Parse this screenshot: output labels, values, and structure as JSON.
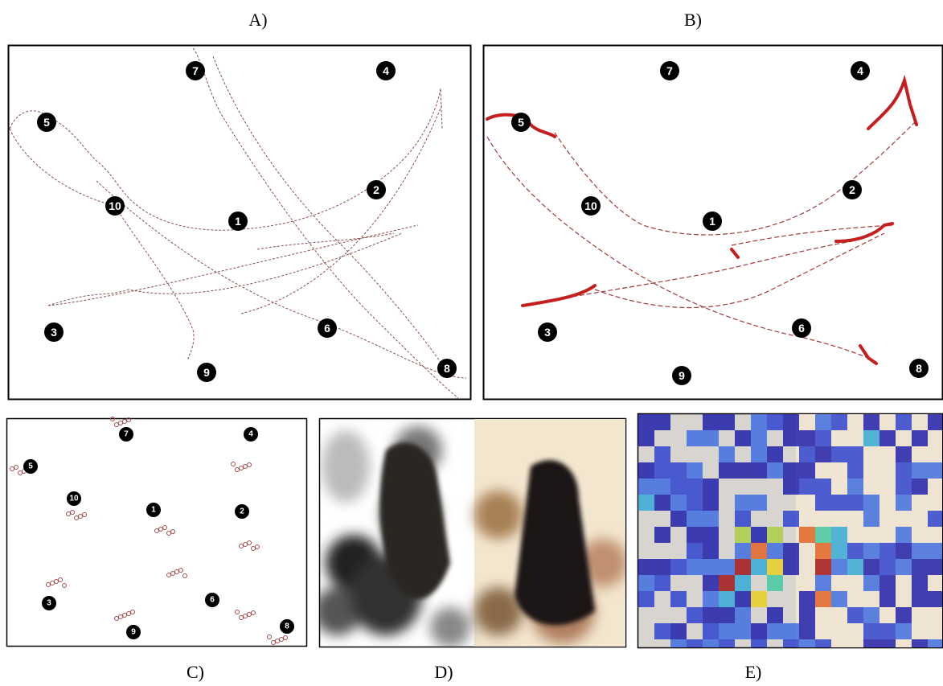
{
  "panels": [
    {
      "label": "A)",
      "markers": [
        "7",
        "4",
        "5",
        "10",
        "1",
        "2",
        "3",
        "6",
        "9",
        "8"
      ]
    },
    {
      "label": "B)",
      "markers": [
        "7",
        "4",
        "5",
        "10",
        "1",
        "2",
        "3",
        "6",
        "9",
        "8"
      ]
    },
    {
      "label": "C)",
      "markers": [
        "7",
        "4",
        "5",
        "10",
        "1",
        "2",
        "3",
        "6",
        "9",
        "8"
      ]
    },
    {
      "label": "D)"
    },
    {
      "label": "E)"
    }
  ]
}
